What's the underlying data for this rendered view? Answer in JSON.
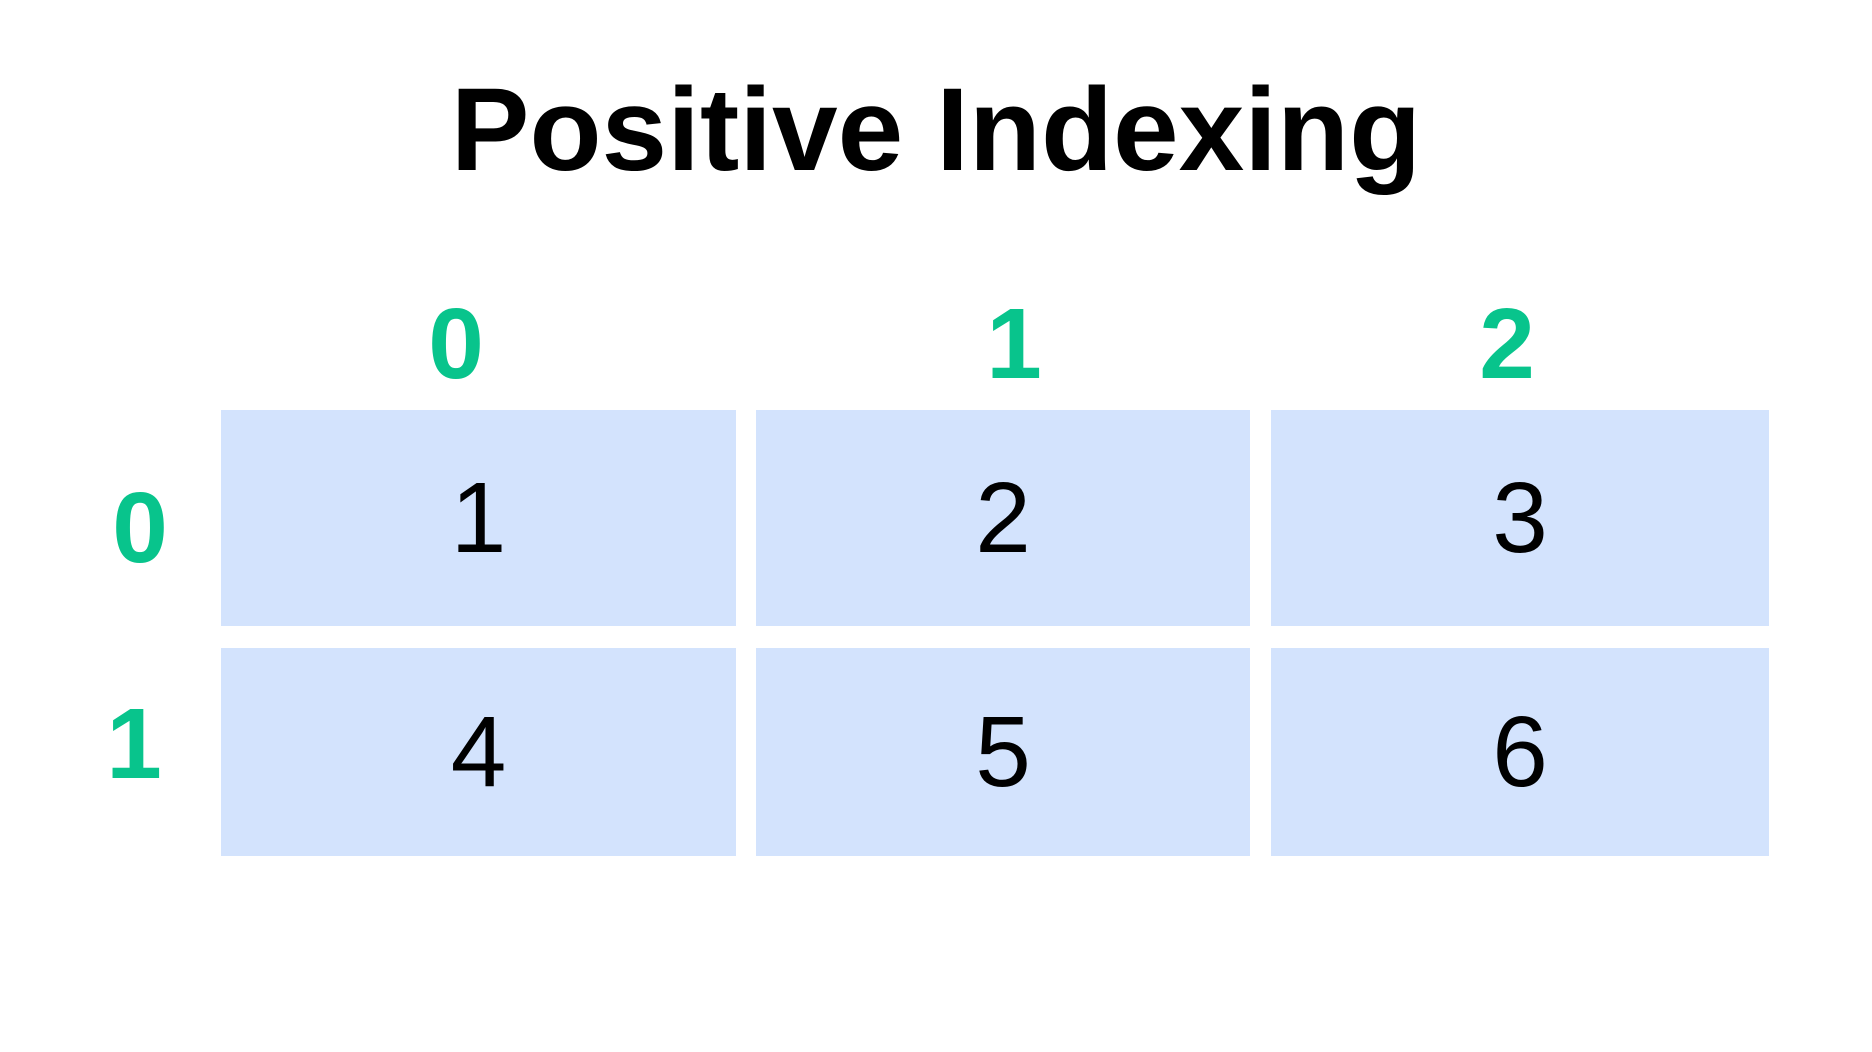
{
  "title": "Positive Indexing",
  "colors": {
    "index": "#08c48c",
    "cell": "#d3e3fd",
    "text": "#000000"
  },
  "column_indices": [
    "0",
    "1",
    "2"
  ],
  "row_indices": [
    "0",
    "1"
  ],
  "cells": [
    [
      "1",
      "2",
      "3"
    ],
    [
      "4",
      "5",
      "6"
    ]
  ]
}
